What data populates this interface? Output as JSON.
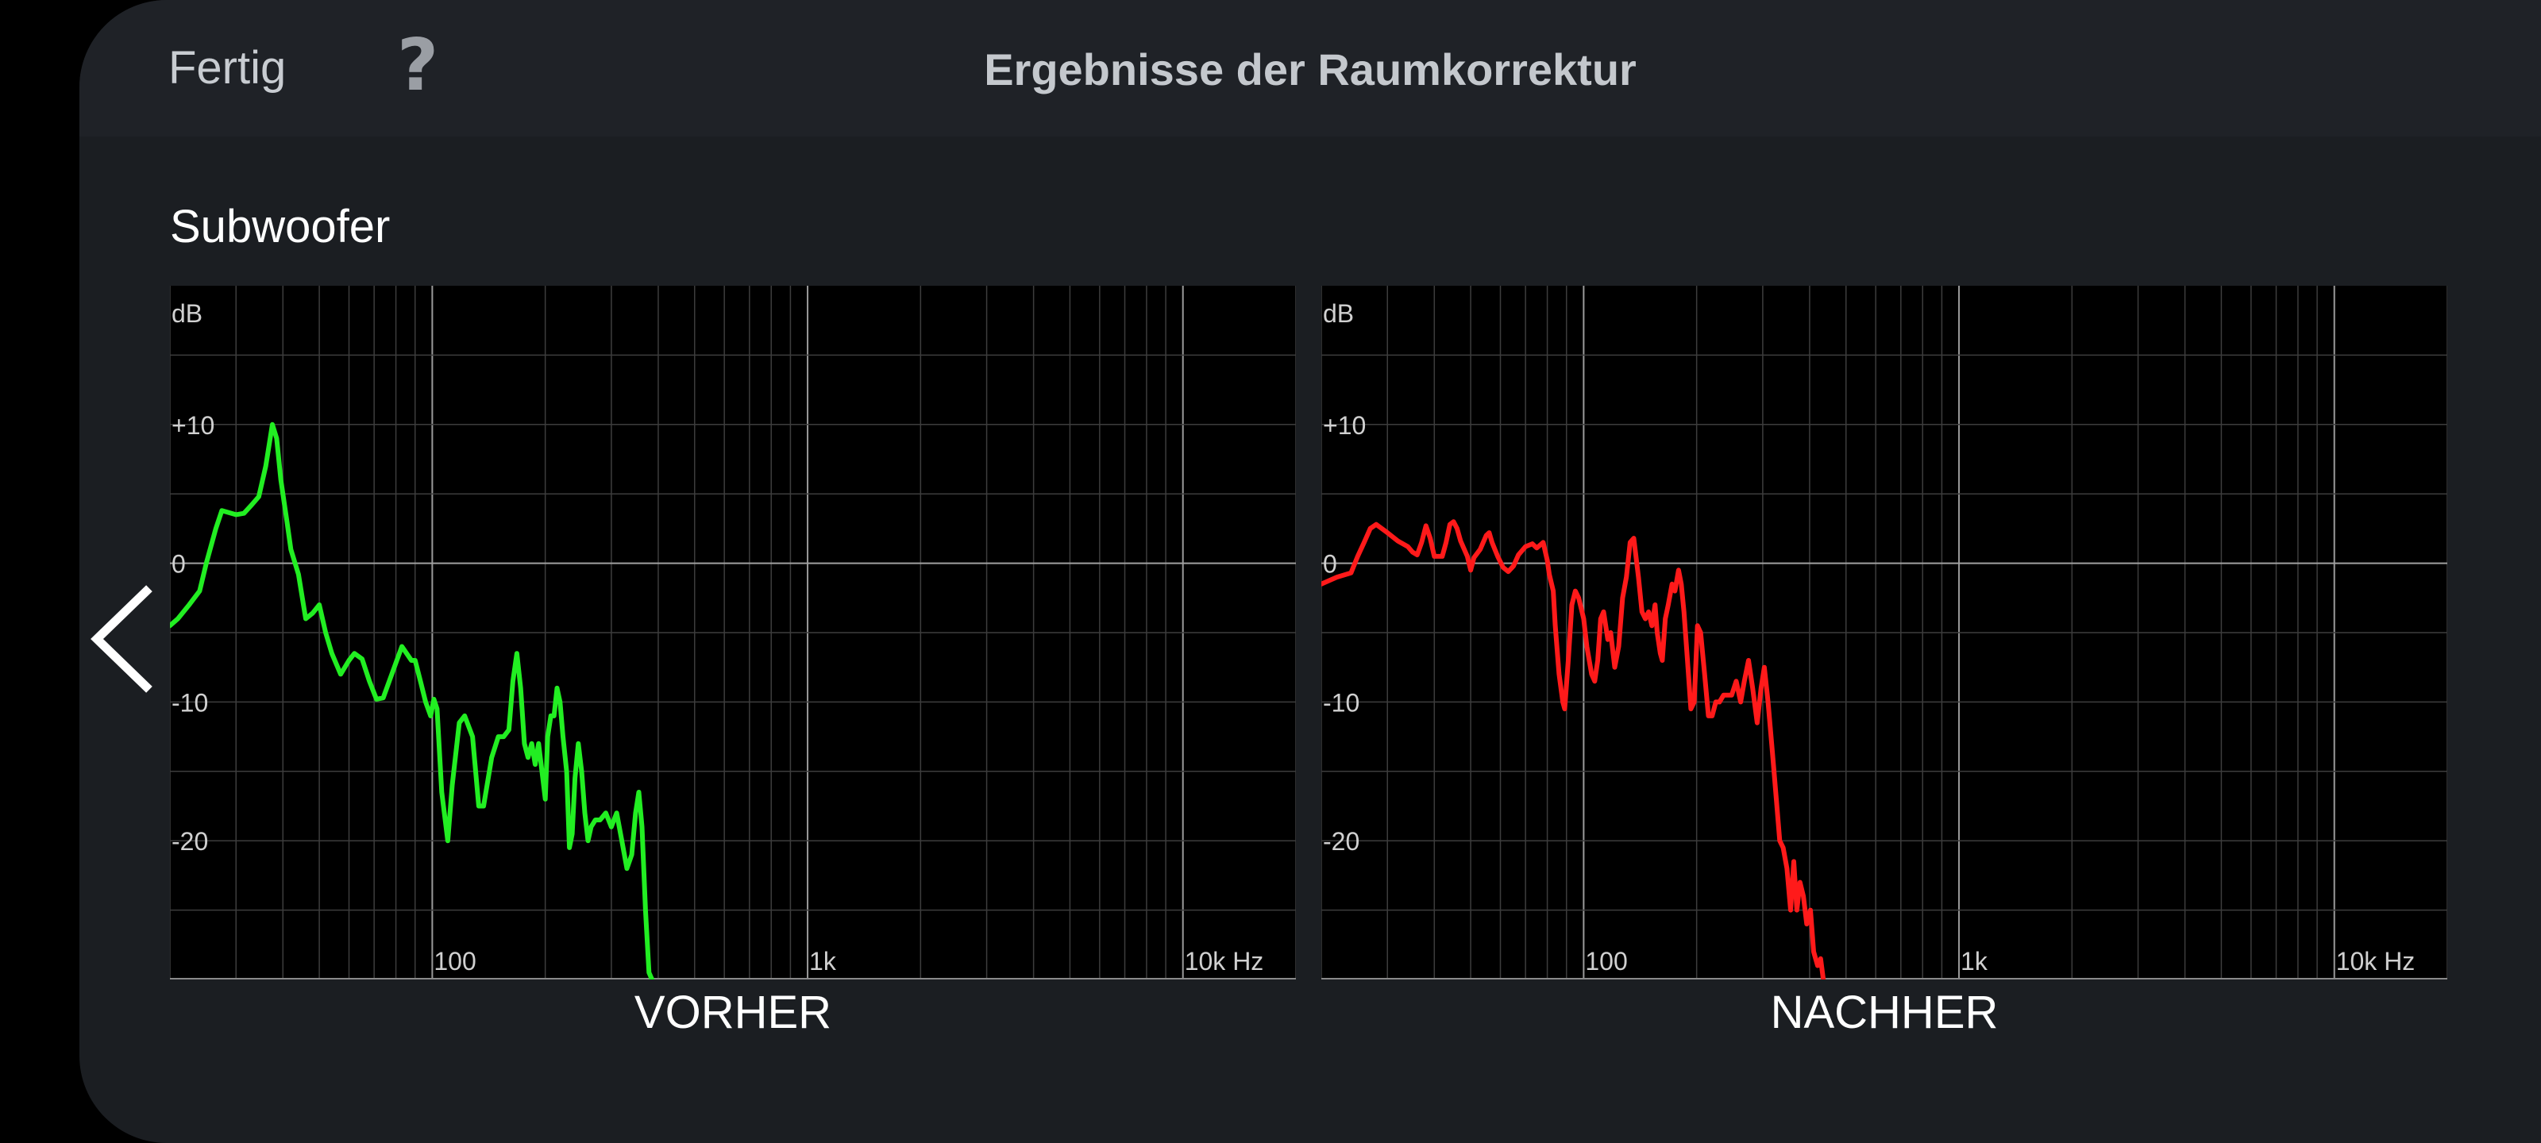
{
  "header": {
    "done_label": "Fertig",
    "help_label": "?",
    "title": "Ergebnisse der Raumkorrektur"
  },
  "section_title": "Subwoofer",
  "nav": {
    "back_icon": "chevron-left-icon"
  },
  "colors": {
    "before": "#22ee22",
    "after": "#ff1a1a",
    "grid": "#3a3a3a",
    "axis": "#888888"
  },
  "chart_data": [
    {
      "type": "line",
      "title": "VORHER",
      "xlabel": "",
      "ylabel": "",
      "y_unit_label": "dB",
      "x_tick_labels": [
        "100",
        "1k",
        "10k Hz"
      ],
      "y_tick_labels": [
        "+10",
        "0",
        "-10",
        "-20"
      ],
      "xscale": "log",
      "xlim": [
        20,
        20000
      ],
      "ylim": [
        -30,
        20
      ],
      "grid": true,
      "series": [
        {
          "color": "#22ee22",
          "points": [
            [
              20,
              -4.5
            ],
            [
              21,
              -4
            ],
            [
              22.5,
              -3
            ],
            [
              24,
              -2
            ],
            [
              25,
              0
            ],
            [
              26.5,
              2.5
            ],
            [
              27.5,
              3.8
            ],
            [
              30,
              3.5
            ],
            [
              31.5,
              3.6
            ],
            [
              33,
              4.2
            ],
            [
              34.5,
              4.8
            ],
            [
              36,
              7
            ],
            [
              37.5,
              10
            ],
            [
              38.5,
              9
            ],
            [
              39.5,
              6
            ],
            [
              41,
              3
            ],
            [
              42,
              1
            ],
            [
              44,
              -0.8
            ],
            [
              46,
              -4
            ],
            [
              48,
              -3.6
            ],
            [
              50,
              -3
            ],
            [
              52,
              -5
            ],
            [
              54,
              -6.5
            ],
            [
              57,
              -8
            ],
            [
              60,
              -7
            ],
            [
              62,
              -6.5
            ],
            [
              65,
              -6.9
            ],
            [
              68,
              -8.5
            ],
            [
              71,
              -9.8
            ],
            [
              74,
              -9.7
            ],
            [
              78,
              -8
            ],
            [
              83,
              -6
            ],
            [
              88,
              -7
            ],
            [
              90,
              -7
            ],
            [
              93,
              -8.5
            ],
            [
              96,
              -10
            ],
            [
              99,
              -11
            ],
            [
              101,
              -9.8
            ],
            [
              103,
              -10.5
            ],
            [
              106,
              -16.5
            ],
            [
              110,
              -20
            ],
            [
              113,
              -16
            ],
            [
              118,
              -11.5
            ],
            [
              122,
              -11
            ],
            [
              128,
              -12.5
            ],
            [
              133,
              -17.5
            ],
            [
              137,
              -17.5
            ],
            [
              144,
              -14
            ],
            [
              150,
              -12.5
            ],
            [
              155,
              -12.5
            ],
            [
              160,
              -12
            ],
            [
              164,
              -8.5
            ],
            [
              168,
              -6.5
            ],
            [
              172,
              -9
            ],
            [
              176,
              -13
            ],
            [
              180,
              -14
            ],
            [
              184,
              -13
            ],
            [
              188,
              -14.5
            ],
            [
              192,
              -13
            ],
            [
              196,
              -15
            ],
            [
              200,
              -17
            ],
            [
              203,
              -12.5
            ],
            [
              207,
              -11
            ],
            [
              211,
              -11
            ],
            [
              215,
              -9
            ],
            [
              219,
              -10
            ],
            [
              223,
              -12.5
            ],
            [
              228,
              -15
            ],
            [
              232,
              -20.5
            ],
            [
              236,
              -19.5
            ],
            [
              240,
              -15.5
            ],
            [
              245,
              -13
            ],
            [
              250,
              -15
            ],
            [
              255,
              -18
            ],
            [
              260,
              -20
            ],
            [
              265,
              -19
            ],
            [
              272,
              -18.5
            ],
            [
              280,
              -18.5
            ],
            [
              290,
              -18
            ],
            [
              300,
              -19
            ],
            [
              310,
              -18
            ],
            [
              320,
              -20
            ],
            [
              330,
              -22
            ],
            [
              340,
              -21
            ],
            [
              348,
              -18
            ],
            [
              355,
              -16.5
            ],
            [
              362,
              -19
            ],
            [
              370,
              -25
            ],
            [
              378,
              -29.5
            ],
            [
              385,
              -30
            ]
          ]
        }
      ]
    },
    {
      "type": "line",
      "title": "NACHHER",
      "xlabel": "",
      "ylabel": "",
      "y_unit_label": "dB",
      "x_tick_labels": [
        "100",
        "1k",
        "10k Hz"
      ],
      "y_tick_labels": [
        "+10",
        "0",
        "-10",
        "-20"
      ],
      "xscale": "log",
      "xlim": [
        20,
        20000
      ],
      "ylim": [
        -30,
        20
      ],
      "grid": true,
      "series": [
        {
          "color": "#ff1a1a",
          "points": [
            [
              20,
              -1.5
            ],
            [
              22,
              -1
            ],
            [
              24,
              -0.7
            ],
            [
              25,
              0.5
            ],
            [
              26,
              1.5
            ],
            [
              27,
              2.5
            ],
            [
              28,
              2.8
            ],
            [
              30,
              2.2
            ],
            [
              32,
              1.6
            ],
            [
              34,
              1.2
            ],
            [
              35,
              0.8
            ],
            [
              36,
              0.6
            ],
            [
              37,
              1.5
            ],
            [
              38,
              2.7
            ],
            [
              39,
              1.8
            ],
            [
              40,
              0.5
            ],
            [
              42,
              0.5
            ],
            [
              43,
              1.5
            ],
            [
              44,
              2.8
            ],
            [
              45,
              3
            ],
            [
              46,
              2.5
            ],
            [
              47,
              1.6
            ],
            [
              49,
              0.5
            ],
            [
              50,
              -0.5
            ],
            [
              51,
              0.4
            ],
            [
              53,
              1
            ],
            [
              55,
              2
            ],
            [
              56,
              2.2
            ],
            [
              57,
              1.5
            ],
            [
              59,
              0.5
            ],
            [
              61,
              -0.3
            ],
            [
              63,
              -0.6
            ],
            [
              65,
              -0.2
            ],
            [
              67,
              0.6
            ],
            [
              70,
              1.2
            ],
            [
              73,
              1.4
            ],
            [
              75,
              1.1
            ],
            [
              78,
              1.5
            ],
            [
              80,
              0.2
            ],
            [
              81,
              -0.8
            ],
            [
              83,
              -2
            ],
            [
              84,
              -4.5
            ],
            [
              86,
              -8
            ],
            [
              88,
              -10
            ],
            [
              89,
              -10.5
            ],
            [
              91,
              -7
            ],
            [
              93,
              -3
            ],
            [
              95,
              -2
            ],
            [
              97,
              -2.5
            ],
            [
              100,
              -4
            ],
            [
              102,
              -6
            ],
            [
              105,
              -8
            ],
            [
              107,
              -8.5
            ],
            [
              109,
              -7
            ],
            [
              111,
              -4
            ],
            [
              113,
              -3.5
            ],
            [
              116,
              -5.5
            ],
            [
              118,
              -5
            ],
            [
              121,
              -7.5
            ],
            [
              124,
              -6
            ],
            [
              127,
              -2.5
            ],
            [
              130,
              -1
            ],
            [
              133,
              1.5
            ],
            [
              136,
              1.8
            ],
            [
              140,
              -1
            ],
            [
              143,
              -3.5
            ],
            [
              146,
              -4
            ],
            [
              149,
              -3.5
            ],
            [
              152,
              -4.5
            ],
            [
              155,
              -3
            ],
            [
              157,
              -5
            ],
            [
              160,
              -6.5
            ],
            [
              162,
              -7
            ],
            [
              165,
              -4
            ],
            [
              168,
              -3
            ],
            [
              172,
              -1.5
            ],
            [
              175,
              -2
            ],
            [
              179,
              -0.5
            ],
            [
              182,
              -1.5
            ],
            [
              185,
              -3.5
            ],
            [
              189,
              -7
            ],
            [
              193,
              -10.5
            ],
            [
              197,
              -10
            ],
            [
              201,
              -4.5
            ],
            [
              205,
              -5
            ],
            [
              210,
              -8
            ],
            [
              215,
              -11
            ],
            [
              220,
              -11
            ],
            [
              225,
              -10
            ],
            [
              230,
              -10
            ],
            [
              236,
              -9.5
            ],
            [
              242,
              -9.5
            ],
            [
              248,
              -9.5
            ],
            [
              255,
              -8.5
            ],
            [
              262,
              -10
            ],
            [
              268,
              -8.5
            ],
            [
              275,
              -7
            ],
            [
              282,
              -9
            ],
            [
              290,
              -11.5
            ],
            [
              297,
              -9
            ],
            [
              303,
              -7.5
            ],
            [
              310,
              -10
            ],
            [
              318,
              -13.5
            ],
            [
              326,
              -17
            ],
            [
              333,
              -20
            ],
            [
              340,
              -20.5
            ],
            [
              348,
              -22
            ],
            [
              356,
              -25
            ],
            [
              363,
              -21.5
            ],
            [
              370,
              -25
            ],
            [
              377,
              -23
            ],
            [
              385,
              -24
            ],
            [
              393,
              -26
            ],
            [
              402,
              -25
            ],
            [
              410,
              -28
            ],
            [
              420,
              -29
            ],
            [
              428,
              -28.5
            ],
            [
              435,
              -30
            ]
          ]
        }
      ]
    }
  ]
}
